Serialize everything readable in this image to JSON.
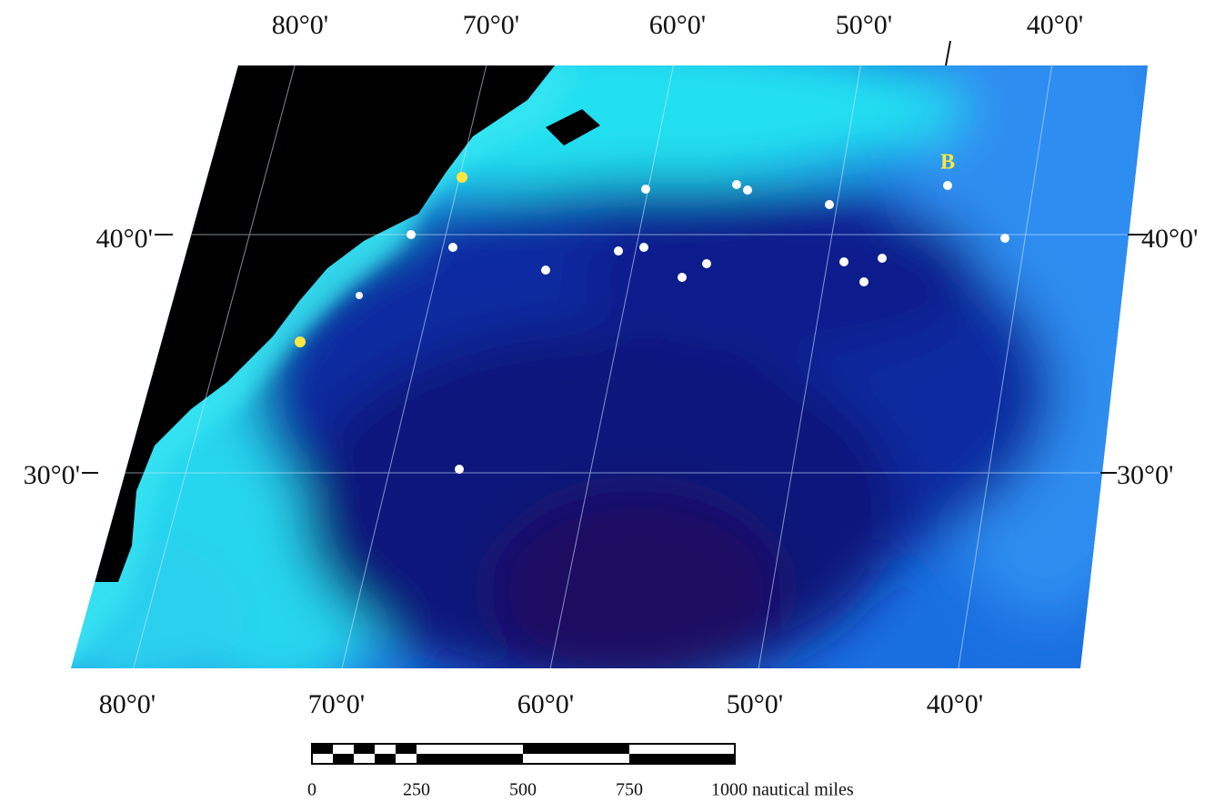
{
  "map": {
    "top_labels": [
      "80°0'",
      "70°0'",
      "60°0'",
      "50°0'",
      "40°0'"
    ],
    "bottom_labels": [
      "80°0'",
      "70°0'",
      "60°0'",
      "50°0'",
      "40°0'"
    ],
    "left_labels": [
      "40°0'",
      "30°0'"
    ],
    "right_labels": [
      "40°0'",
      "30°0'"
    ],
    "marker_label": "B",
    "scale_labels": [
      "0",
      "250",
      "500",
      "750",
      "1000 nautical miles"
    ]
  }
}
